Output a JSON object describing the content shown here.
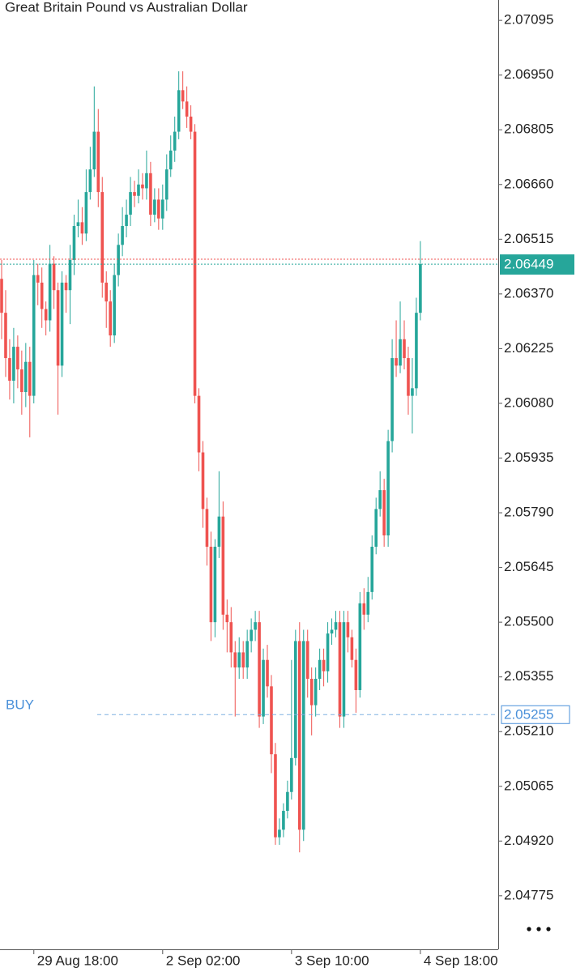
{
  "chart_data": {
    "type": "candlestick",
    "title": "Great Britain Pound vs Australian Dollar",
    "categories": [
      null,
      null,
      null,
      null,
      null,
      null,
      null,
      null,
      "29 Aug 18:00",
      null,
      null,
      null,
      null,
      null,
      null,
      null,
      null,
      null,
      null,
      null,
      null,
      null,
      null,
      null,
      null,
      null,
      null,
      null,
      null,
      null,
      null,
      null,
      null,
      null,
      null,
      null,
      null,
      null,
      null,
      null,
      "2 Sep 02:00",
      null,
      null,
      null,
      null,
      null,
      null,
      null,
      null,
      null,
      null,
      null,
      null,
      null,
      null,
      null,
      null,
      null,
      null,
      null,
      null,
      null,
      null,
      null,
      null,
      null,
      null,
      null,
      null,
      null,
      null,
      null,
      "3 Sep 10:00",
      null,
      null,
      null,
      null,
      null,
      null,
      null,
      null,
      null,
      null,
      null,
      null,
      null,
      null,
      null,
      null,
      null,
      null,
      null,
      null,
      null,
      null,
      null,
      null,
      null,
      null,
      null,
      null,
      null,
      null,
      null,
      "4 Sep 18:00"
    ],
    "open": [
      2.0641,
      2.0632,
      2.062,
      2.0614,
      2.0623,
      2.0617,
      2.0611,
      2.0619,
      2.061,
      2.0642,
      2.064,
      2.0633,
      2.063,
      2.0645,
      2.0638,
      2.0618,
      2.064,
      2.0638,
      2.0646,
      2.0655,
      2.0656,
      2.0653,
      2.0664,
      2.067,
      2.068,
      2.0664,
      2.064,
      2.0635,
      2.0626,
      2.0642,
      2.065,
      2.0655,
      2.0658,
      2.0664,
      2.0663,
      2.0666,
      2.0665,
      2.0669,
      2.0658,
      2.0662,
      2.0657,
      2.0662,
      2.067,
      2.0675,
      2.068,
      2.0691,
      2.0688,
      2.0684,
      2.068,
      2.061,
      2.0595,
      2.058,
      2.057,
      2.055,
      2.057,
      2.0578,
      2.0552,
      2.055,
      2.0542,
      2.0538,
      2.0542,
      2.0538,
      2.0545,
      2.0548,
      2.055,
      2.0525,
      2.054,
      2.0533,
      2.0515,
      2.0493,
      2.0495,
      2.05,
      2.0505,
      2.0514,
      2.0545,
      2.0495,
      2.0545,
      2.0535,
      2.0528,
      2.0535,
      2.054,
      2.0537,
      2.0547,
      2.0548,
      2.055,
      2.0525,
      2.055,
      2.0546,
      2.054,
      2.0532,
      2.0555,
      2.0552,
      2.0558,
      2.057,
      2.058,
      2.0585,
      2.0573,
      2.0598,
      2.062,
      2.0618,
      2.0625,
      2.062,
      2.061,
      2.0612,
      2.0632
    ],
    "high": [
      2.0646,
      2.0638,
      2.0625,
      2.0628,
      2.0626,
      2.0622,
      2.0624,
      2.0623,
      2.0646,
      2.0645,
      2.0644,
      2.0635,
      2.065,
      2.0647,
      2.064,
      2.0643,
      2.0642,
      2.065,
      2.0658,
      2.0662,
      2.066,
      2.067,
      2.0676,
      2.0692,
      2.0686,
      2.0668,
      2.0643,
      2.0638,
      2.0645,
      2.0653,
      2.066,
      2.0662,
      2.0668,
      2.0667,
      2.067,
      2.0669,
      2.0675,
      2.0672,
      2.0665,
      2.0665,
      2.0666,
      2.0674,
      2.0679,
      2.0684,
      2.0696,
      2.0696,
      2.0692,
      2.0687,
      2.0682,
      2.0612,
      2.0598,
      2.0583,
      2.0574,
      2.0572,
      2.059,
      2.0582,
      2.0556,
      2.0554,
      2.0545,
      2.0546,
      2.0545,
      2.0548,
      2.0551,
      2.0553,
      2.0553,
      2.0543,
      2.0544,
      2.0536,
      2.0518,
      2.0498,
      2.0502,
      2.0508,
      2.054,
      2.0548,
      2.055,
      2.0548,
      2.0548,
      2.0538,
      2.0538,
      2.0543,
      2.0543,
      2.055,
      2.0551,
      2.0553,
      2.0553,
      2.0553,
      2.0553,
      2.0548,
      2.0543,
      2.0558,
      2.0559,
      2.0562,
      2.0573,
      2.0583,
      2.059,
      2.0588,
      2.0601,
      2.0625,
      2.063,
      2.0635,
      2.063,
      2.0623,
      2.062,
      2.0636,
      2.0651
    ],
    "low": [
      2.0625,
      2.0615,
      2.0609,
      2.0608,
      2.0612,
      2.0605,
      2.0607,
      2.0599,
      2.0608,
      2.0634,
      2.0628,
      2.0626,
      2.0627,
      2.0633,
      2.0605,
      2.0615,
      2.0632,
      2.0629,
      2.0642,
      2.0652,
      2.065,
      2.0651,
      2.0662,
      2.0668,
      2.066,
      2.0636,
      2.0628,
      2.0623,
      2.0624,
      2.0639,
      2.0647,
      2.0652,
      2.0655,
      2.066,
      2.0661,
      2.0662,
      2.0662,
      2.0655,
      2.0656,
      2.0654,
      2.0654,
      2.0659,
      2.0668,
      2.0672,
      2.0678,
      2.0686,
      2.0681,
      2.0678,
      2.0608,
      2.059,
      2.0575,
      2.0565,
      2.0545,
      2.0546,
      2.0567,
      2.0548,
      2.0542,
      2.0538,
      2.0525,
      2.0535,
      2.0535,
      2.0535,
      2.0542,
      2.0545,
      2.0522,
      2.0523,
      2.053,
      2.051,
      2.0491,
      2.0491,
      2.0493,
      2.0498,
      2.0503,
      2.0512,
      2.0489,
      2.0492,
      2.053,
      2.052,
      2.0525,
      2.0532,
      2.0533,
      2.0534,
      2.0544,
      2.0546,
      2.0522,
      2.0522,
      2.0542,
      2.0538,
      2.0526,
      2.053,
      2.0548,
      2.055,
      2.0556,
      2.0568,
      2.0578,
      2.057,
      2.057,
      2.0595,
      2.0615,
      2.0616,
      2.0617,
      2.0605,
      2.06,
      2.061,
      2.063
    ],
    "close": [
      2.0632,
      2.062,
      2.0614,
      2.0623,
      2.0617,
      2.0611,
      2.0619,
      2.061,
      2.0642,
      2.064,
      2.0633,
      2.063,
      2.0645,
      2.0638,
      2.0618,
      2.064,
      2.0638,
      2.0646,
      2.0655,
      2.0656,
      2.0653,
      2.0664,
      2.067,
      2.068,
      2.0664,
      2.064,
      2.0635,
      2.0626,
      2.0642,
      2.065,
      2.0655,
      2.0658,
      2.0664,
      2.0663,
      2.0666,
      2.0665,
      2.0669,
      2.0658,
      2.0662,
      2.0657,
      2.0662,
      2.067,
      2.0675,
      2.068,
      2.0691,
      2.0688,
      2.0684,
      2.068,
      2.061,
      2.0595,
      2.058,
      2.057,
      2.055,
      2.057,
      2.0578,
      2.0552,
      2.055,
      2.0542,
      2.0538,
      2.0542,
      2.0538,
      2.0545,
      2.0548,
      2.055,
      2.0525,
      2.054,
      2.0533,
      2.0515,
      2.0493,
      2.0495,
      2.05,
      2.0505,
      2.0514,
      2.0545,
      2.0495,
      2.0545,
      2.0535,
      2.0528,
      2.0535,
      2.054,
      2.0537,
      2.0547,
      2.0548,
      2.055,
      2.0525,
      2.055,
      2.0546,
      2.054,
      2.0532,
      2.0555,
      2.0552,
      2.0558,
      2.057,
      2.058,
      2.0585,
      2.0573,
      2.0598,
      2.062,
      2.0618,
      2.0625,
      2.062,
      2.061,
      2.0612,
      2.0632,
      2.06449
    ],
    "up_color": "#26a69a",
    "down_color": "#ef5350",
    "ylim": [
      2.04633,
      2.07149
    ],
    "yticks": [
      2.07095,
      {
        "value": 2.0695,
        "label": "2.06950"
      },
      2.06805,
      {
        "value": 2.0666,
        "label": "2.06660"
      },
      2.06515,
      {
        "value": 2.0637,
        "label": "2.06370"
      },
      2.06225,
      {
        "value": 2.0608,
        "label": "2.06080"
      },
      2.05935,
      {
        "value": 2.0579,
        "label": "2.05790"
      },
      2.05645,
      {
        "value": 2.055,
        "label": "2.05500"
      },
      2.05355,
      {
        "value": 2.0521,
        "label": "2.05210"
      },
      2.05065,
      {
        "value": 2.0492,
        "label": "2.04920"
      },
      2.04775
    ],
    "bid_price": 2.06449,
    "ask_price": 2.06462,
    "buy_order": {
      "label": "BUY",
      "price": 2.05255
    }
  }
}
